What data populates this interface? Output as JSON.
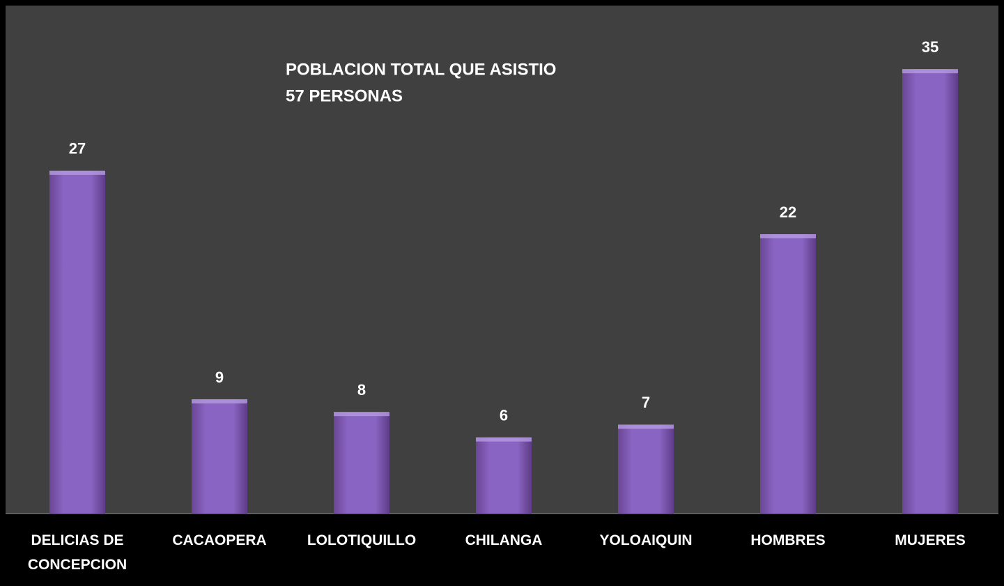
{
  "chart_data": {
    "type": "bar",
    "title": "POBLACION TOTAL QUE ASISTIO",
    "subtitle": "57 PERSONAS",
    "categories": [
      "DELICIAS DE CONCEPCION",
      "CACAOPERA",
      "LOLOTIQUILLO",
      "CHILANGA",
      "YOLOAIQUIN",
      "HOMBRES",
      "MUJERES"
    ],
    "values": [
      27,
      9,
      8,
      6,
      7,
      22,
      35
    ],
    "color": "#8660bd",
    "ylim": [
      0,
      40
    ]
  }
}
